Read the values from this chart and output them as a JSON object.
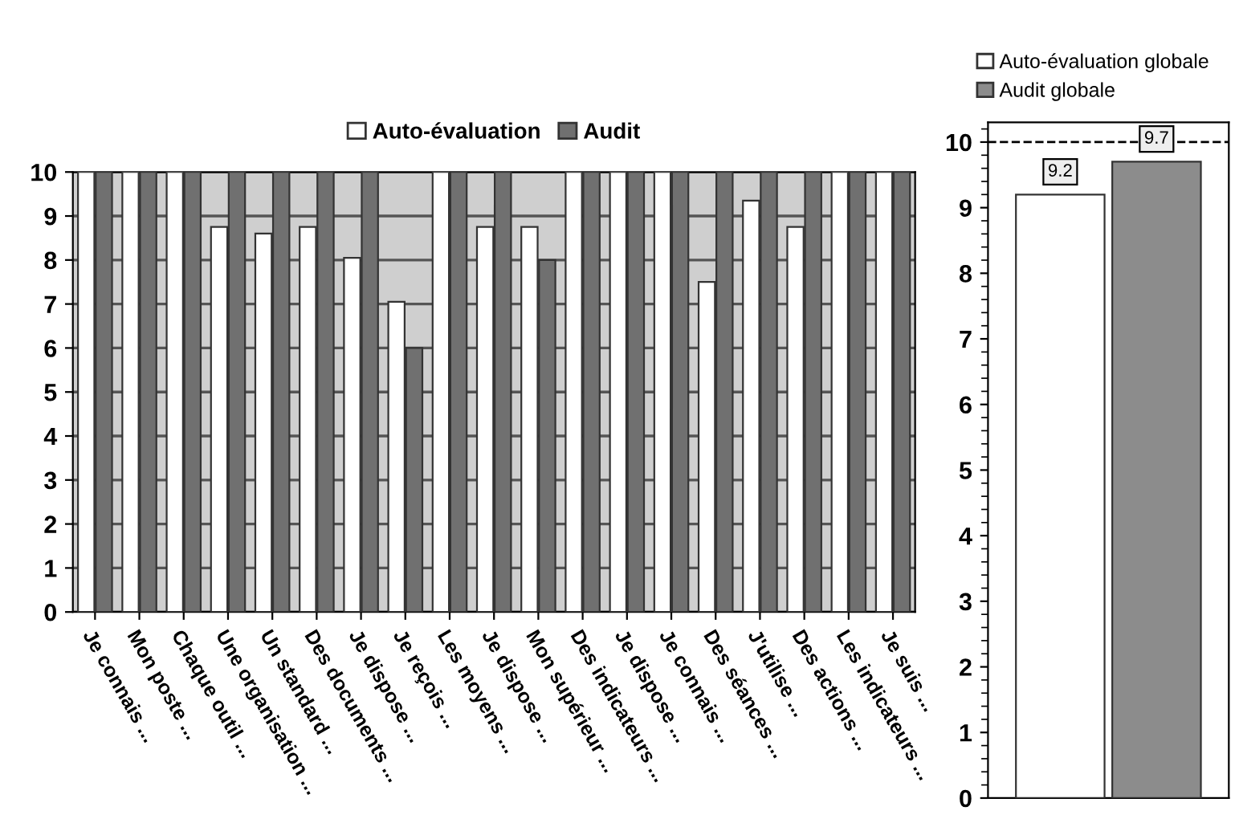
{
  "chart_data": [
    {
      "type": "bar",
      "categories": [
        "Je connais ...",
        "Mon poste ...",
        "Chaque outil ...",
        "Une organisation ...",
        "Un standard ...",
        "Des documents ...",
        "Je dispose ...",
        "Je reçois ...",
        "Les moyens ...",
        "Je dispose ...",
        "Mon supérieur ...",
        "Des indicateurs ...",
        "Je dispose ...",
        "Je connais ...",
        "Des séances ...",
        "J'utilise ...",
        "Des actions ...",
        "Les indicateurs ...",
        "Je suis ..."
      ],
      "series": [
        {
          "name": "Auto-évaluation",
          "color": "#ffffff",
          "values": [
            10,
            10,
            10,
            8.75,
            8.6,
            8.75,
            8.05,
            7.05,
            10,
            8.75,
            8.75,
            10,
            10,
            10,
            7.5,
            9.35,
            8.75,
            10,
            10
          ]
        },
        {
          "name": "Audit",
          "color": "#707070",
          "values": [
            10,
            10,
            10,
            10,
            10,
            10,
            10,
            6,
            10,
            10,
            8,
            10,
            10,
            10,
            10,
            10,
            10,
            10,
            10
          ]
        }
      ],
      "ylim": [
        0,
        10
      ],
      "yticks": [
        0,
        1,
        2,
        3,
        4,
        5,
        6,
        7,
        8,
        9,
        10
      ],
      "grid": "y",
      "legend": "top"
    },
    {
      "type": "bar",
      "categories": [
        null
      ],
      "series": [
        {
          "name": "Auto-évaluation globale",
          "color": "#ffffff",
          "values": [
            9.2
          ]
        },
        {
          "name": "Audit globale",
          "color": "#8c8c8c",
          "values": [
            9.7
          ]
        }
      ],
      "ylim": [
        0,
        10.3
      ],
      "yticks": [
        0,
        1,
        2,
        3,
        4,
        5,
        6,
        7,
        8,
        9,
        10
      ],
      "data_labels": true,
      "legend": "top left",
      "ref_lines": [
        {
          "axis": "y",
          "value": 10,
          "label": null,
          "line_style": "dashed",
          "color": "#000000"
        }
      ]
    }
  ]
}
